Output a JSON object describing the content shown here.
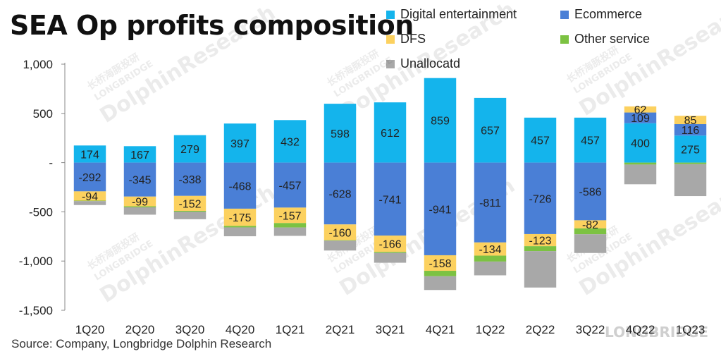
{
  "title": "SEA Op profits composition",
  "source": "Source: Company, Longbridge Dolphin Research",
  "watermark": {
    "brand": "DolphinResearch",
    "sub": "LONGBRIDGE",
    "cn": "长桥海豚投研",
    "corner": "LONGBRIDGE"
  },
  "chart_data": {
    "type": "bar",
    "stacked": true,
    "categories": [
      "1Q20",
      "2Q20",
      "3Q20",
      "4Q20",
      "1Q21",
      "2Q21",
      "3Q21",
      "4Q21",
      "1Q22",
      "2Q22",
      "3Q22",
      "4Q22",
      "1Q23"
    ],
    "ylim": [
      -1500,
      1000
    ],
    "yticks": [
      1000,
      500,
      0,
      -500,
      -1000,
      -1500
    ],
    "ytick_labels": [
      "1,000",
      "500",
      "-",
      "-500",
      "-1,000",
      "-1,500"
    ],
    "series": [
      {
        "name": "Digital entertainment",
        "color": "#14b4ec",
        "values": [
          174,
          167,
          279,
          397,
          432,
          598,
          612,
          859,
          657,
          457,
          457,
          400,
          275
        ],
        "labels": [
          "174",
          "167",
          "279",
          "397",
          "432",
          "598",
          "612",
          "859",
          "657",
          "457",
          "457",
          "400",
          "275"
        ]
      },
      {
        "name": "Ecommerce",
        "color": "#4a7fd6",
        "values": [
          -292,
          -345,
          -338,
          -468,
          -457,
          -628,
          -741,
          -941,
          -811,
          -726,
          -586,
          109,
          116
        ],
        "labels": [
          "-292",
          "-345",
          "-338",
          "-468",
          "-457",
          "-628",
          "-741",
          "-941",
          "-811",
          "-726",
          "-586",
          "109",
          "116"
        ]
      },
      {
        "name": "DFS",
        "color": "#fcd15f",
        "values": [
          -94,
          -99,
          -152,
          -175,
          -157,
          -160,
          -166,
          -158,
          -134,
          -123,
          -82,
          62,
          85
        ],
        "labels": [
          "-94",
          "-99",
          "-152",
          "-175",
          "-157",
          "-160",
          "-166",
          "-158",
          "-134",
          "-123",
          "-82",
          "62",
          "85"
        ]
      },
      {
        "name": "Other service",
        "color": "#7cc242",
        "values": [
          -5,
          -10,
          -10,
          -15,
          -45,
          -5,
          -10,
          -55,
          -60,
          -50,
          -60,
          -20,
          -15
        ],
        "labels": [
          "",
          "",
          "",
          "",
          "",
          "",
          "",
          "",
          "",
          "",
          "",
          "",
          ""
        ]
      },
      {
        "name": "Unallocatd",
        "color": "#a8a8a8",
        "values": [
          -40,
          -75,
          -75,
          -90,
          -85,
          -100,
          -100,
          -140,
          -140,
          -370,
          -190,
          -200,
          -325
        ],
        "labels": [
          "",
          "",
          "",
          "",
          "",
          "",
          "",
          "",
          "",
          "",
          "",
          "",
          ""
        ]
      }
    ]
  }
}
